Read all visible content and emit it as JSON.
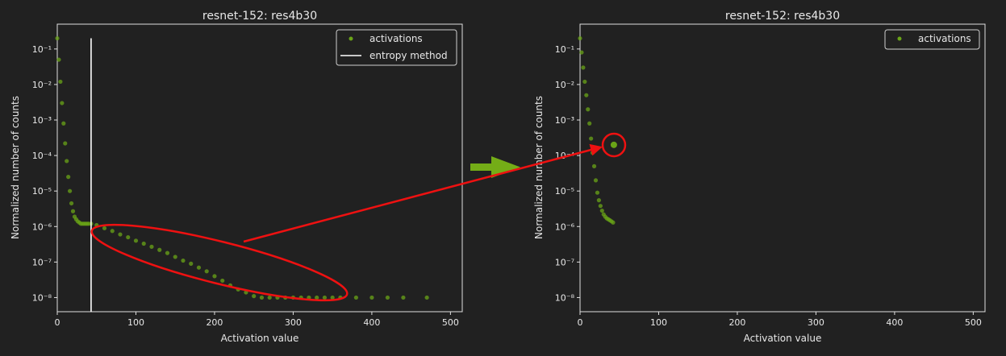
{
  "chart_data": [
    {
      "type": "scatter",
      "title": "resnet-152: res4b30",
      "xlabel": "Activation value",
      "ylabel": "Normalized number of counts",
      "xlim": [
        0,
        515
      ],
      "ylim": [
        4e-09,
        0.5
      ],
      "y_scale": "log",
      "x_ticks": [
        "0",
        "100",
        "200",
        "300",
        "400",
        "500"
      ],
      "y_ticks": [
        "10⁻⁸",
        "10⁻⁷",
        "10⁻⁶",
        "10⁻⁵",
        "10⁻⁴",
        "10⁻³",
        "10⁻²",
        "10⁻¹"
      ],
      "legend_placement": "top-right",
      "series": [
        {
          "name": "activations",
          "kind": "points",
          "color": "#6aa417",
          "x": [
            0,
            2,
            4,
            6,
            8,
            10,
            12,
            14,
            16,
            18,
            20,
            22,
            24,
            26,
            28,
            30,
            32,
            34,
            36,
            38,
            40,
            43,
            50,
            60,
            70,
            80,
            90,
            100,
            110,
            120,
            130,
            140,
            150,
            160,
            170,
            180,
            190,
            200,
            210,
            220,
            230,
            240,
            250,
            260,
            270,
            280,
            290,
            300,
            310,
            320,
            330,
            340,
            350,
            360,
            380,
            400,
            420,
            440,
            470
          ],
          "y": [
            0.2,
            0.05,
            0.012,
            0.003,
            0.0008,
            0.00022,
            7e-05,
            2.5e-05,
            1e-05,
            4.5e-06,
            2.7e-06,
            1.9e-06,
            1.6e-06,
            1.4e-06,
            1.3e-06,
            1.2e-06,
            1.2e-06,
            1.2e-06,
            1.2e-06,
            1.2e-06,
            1.2e-06,
            1.2e-06,
            1.1e-06,
            9e-07,
            7.5e-07,
            6e-07,
            5e-07,
            4e-07,
            3.3e-07,
            2.7e-07,
            2.2e-07,
            1.8e-07,
            1.4e-07,
            1.1e-07,
            9e-08,
            7e-08,
            5.5e-08,
            4e-08,
            3e-08,
            2.2e-08,
            1.7e-08,
            1.4e-08,
            1.1e-08,
            1e-08,
            1e-08,
            1e-08,
            1e-08,
            1e-08,
            1e-08,
            1e-08,
            1e-08,
            1e-08,
            1e-08,
            1e-08,
            1e-08,
            1e-08,
            1e-08,
            1e-08,
            1e-08
          ]
        },
        {
          "name": "entropy method",
          "kind": "vline",
          "color": "#ffffff",
          "x": 43,
          "y_range": [
            4e-09,
            0.2
          ]
        }
      ],
      "annotation": {
        "shape": "ellipse",
        "color": "#ee1111",
        "around": "tail points, activation value ≈ 45–360"
      }
    },
    {
      "type": "scatter",
      "title": "resnet-152: res4b30",
      "xlabel": "Activation value",
      "ylabel": "Normalized number of counts",
      "xlim": [
        0,
        515
      ],
      "ylim": [
        4e-09,
        0.5
      ],
      "y_scale": "log",
      "x_ticks": [
        "0",
        "100",
        "200",
        "300",
        "400",
        "500"
      ],
      "y_ticks": [
        "10⁻⁸",
        "10⁻⁷",
        "10⁻⁶",
        "10⁻⁵",
        "10⁻⁴",
        "10⁻³",
        "10⁻²",
        "10⁻¹"
      ],
      "legend_placement": "top-right",
      "series": [
        {
          "name": "activations",
          "kind": "points",
          "color": "#6aa417",
          "x": [
            0,
            2,
            4,
            6,
            8,
            10,
            12,
            14,
            16,
            18,
            20,
            22,
            24,
            26,
            28,
            30,
            32,
            34,
            36,
            38,
            40,
            42
          ],
          "y": [
            0.2,
            0.08,
            0.03,
            0.012,
            0.005,
            0.002,
            0.0008,
            0.0003,
            0.00012,
            5e-05,
            2e-05,
            9e-06,
            5.5e-06,
            3.8e-06,
            2.8e-06,
            2.2e-06,
            1.9e-06,
            1.7e-06,
            1.6e-06,
            1.5e-06,
            1.4e-06,
            1.3e-06
          ]
        },
        {
          "name": "",
          "kind": "points",
          "color": "#6aa417",
          "x": [
            43
          ],
          "y": [
            0.0002
          ]
        }
      ],
      "annotation": {
        "shape": "circle",
        "color": "#ee1111",
        "around": "merged point at activation value ≈ 43"
      }
    }
  ],
  "arrows": {
    "transition_color": "#74ad17",
    "pointer_color": "#ee1111"
  }
}
